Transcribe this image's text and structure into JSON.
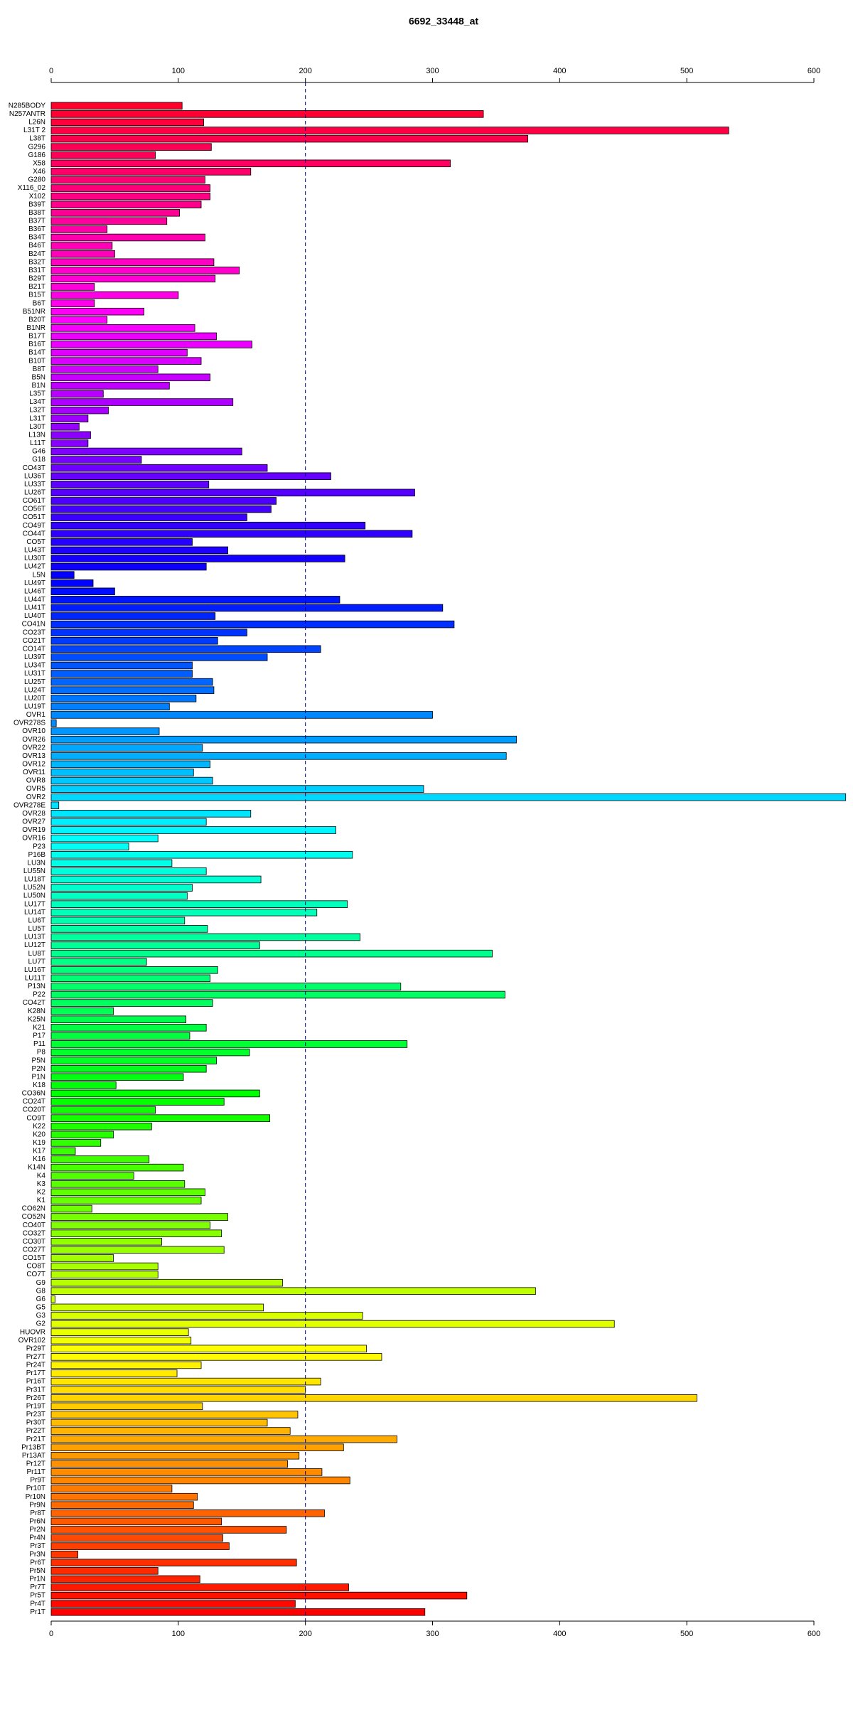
{
  "chart_data": {
    "type": "hbar",
    "title": "6692_33448_at",
    "categories": [
      "N285BODY",
      "N257ANTR",
      "L26N",
      "L31T 2",
      "L38T",
      "G296",
      "G186",
      "X58",
      "X46",
      "G280",
      "X116_02",
      "X102",
      "B39T",
      "B38T",
      "B37T",
      "B36T",
      "B34T",
      "B46T",
      "B24T",
      "B32T",
      "B31T",
      "B29T",
      "B21T",
      "B15T",
      "B6T",
      "B51NR",
      "B20T",
      "B1NR",
      "B17T",
      "B16T",
      "B14T",
      "B10T",
      "B8T",
      "B5N",
      "B1N",
      "L35T",
      "L34T",
      "L32T",
      "L31T",
      "L30T",
      "L13N",
      "L11T",
      "G46",
      "G18",
      "CO43T",
      "LU36T",
      "LU33T",
      "LU26T",
      "CO61T",
      "CO56T",
      "CO51T",
      "CO49T",
      "CO44T",
      "CO5T",
      "LU43T",
      "LU30T",
      "LU42T",
      "L5N",
      "LU49T",
      "LU46T",
      "LU44T",
      "LU41T",
      "LU40T",
      "CO41N",
      "CO23T",
      "CO21T",
      "CO14T",
      "LU39T",
      "LU34T",
      "LU31T",
      "LU25T",
      "LU24T",
      "LU20T",
      "LU19T",
      "OVR1",
      "OVR278S",
      "OVR10",
      "OVR26",
      "OVR22",
      "OVR13",
      "OVR12",
      "OVR11",
      "OVR8",
      "OVR5",
      "OVR2",
      "OVR278E",
      "OVR28",
      "OVR27",
      "OVR19",
      "OVR16",
      "P23",
      "P16B",
      "LU3N",
      "LU55N",
      "LU18T",
      "LU52N",
      "LU50N",
      "LU17T",
      "LU14T",
      "LU6T",
      "LU5T",
      "LU13T",
      "LU12T",
      "LU8T",
      "LU7T",
      "LU16T",
      "LU11T",
      "P13N",
      "P22",
      "CO42T",
      "K28N",
      "K25N",
      "K21",
      "P17",
      "P11",
      "P8",
      "P5N",
      "P2N",
      "P1N",
      "K18",
      "CO36N",
      "CO24T",
      "CO20T",
      "CO9T",
      "K22",
      "K20",
      "K19",
      "K17",
      "K16",
      "K14N",
      "K4",
      "K3",
      "K2",
      "K1",
      "CO62N",
      "CO52N",
      "CO40T",
      "CO32T",
      "CO30T",
      "CO27T",
      "CO15T",
      "CO8T",
      "CO7T",
      "G9",
      "G8",
      "G6",
      "G5",
      "G3",
      "G2",
      "HUOVR",
      "OVR102",
      "Pr29T",
      "Pr27T",
      "Pr24T",
      "Pr17T",
      "Pr16T",
      "Pr31T",
      "Pr26T",
      "Pr19T",
      "Pr23T",
      "Pr30T",
      "Pr22T",
      "Pr21T",
      "Pr13BT",
      "Pr13AT",
      "Pr12T",
      "Pr11T",
      "Pr9T",
      "Pr10T",
      "Pr10N",
      "Pr9N",
      "Pr8T",
      "Pr6N",
      "Pr2N",
      "Pr4N",
      "Pr3T",
      "Pr3N",
      "Pr6T",
      "Pr5N",
      "Pr1N",
      "Pr7T",
      "Pr5T",
      "Pr4T",
      "Pr1T"
    ],
    "values": [
      103,
      340,
      120,
      533,
      375,
      126,
      82,
      314,
      157,
      121,
      125,
      125,
      118,
      101,
      91,
      44,
      121,
      48,
      50,
      128,
      148,
      129,
      34,
      100,
      34,
      73,
      44,
      113,
      130,
      158,
      107,
      118,
      84,
      125,
      93,
      41,
      143,
      45,
      29,
      22,
      31,
      29,
      150,
      71,
      170,
      220,
      124,
      286,
      177,
      173,
      154,
      247,
      284,
      111,
      139,
      231,
      122,
      18,
      33,
      50,
      227,
      308,
      129,
      317,
      154,
      131,
      212,
      170,
      111,
      111,
      127,
      128,
      114,
      93,
      300,
      4,
      85,
      366,
      119,
      358,
      125,
      112,
      127,
      293,
      625,
      6,
      157,
      122,
      224,
      84,
      61,
      237,
      95,
      122,
      165,
      111,
      107,
      233,
      209,
      105,
      123,
      243,
      164,
      347,
      75,
      131,
      125,
      275,
      357,
      127,
      49,
      106,
      122,
      109,
      280,
      156,
      130,
      122,
      104,
      51,
      164,
      136,
      82,
      172,
      79,
      49,
      39,
      19,
      77,
      104,
      65,
      105,
      121,
      118,
      32,
      139,
      125,
      134,
      87,
      136,
      49,
      84,
      84,
      182,
      381,
      3,
      167,
      245,
      443,
      108,
      110,
      248,
      260,
      118,
      99,
      212,
      200,
      508,
      119,
      194,
      170,
      188,
      272,
      230,
      195,
      186,
      213,
      235,
      95,
      115,
      112,
      215,
      134,
      185,
      135,
      140,
      21,
      193,
      84,
      117,
      234,
      327,
      192,
      294
    ],
    "colors": [
      "hsl(350,100%,50%)",
      "hsl(348,100%,50%)",
      "hsl(346,100%,50%)",
      "hsl(344,100%,50%)",
      "hsl(342,100%,50%)",
      "hsl(340,100%,50%)",
      "hsl(339,100%,50%)",
      "hsl(337,100%,50%)",
      "hsl(335,100%,50%)",
      "hsl(333,100%,50%)",
      "hsl(331,100%,50%)",
      "hsl(329,100%,50%)",
      "hsl(327,100%,50%)",
      "hsl(325,100%,50%)",
      "hsl(323,100%,50%)",
      "hsl(321,100%,50%)",
      "hsl(319,100%,50%)",
      "hsl(317,100%,50%)",
      "hsl(316,100%,50%)",
      "hsl(314,100%,50%)",
      "hsl(312,100%,50%)",
      "hsl(310,100%,50%)",
      "hsl(308,100%,50%)",
      "hsl(306,100%,50%)",
      "hsl(304,100%,50%)",
      "hsl(302,100%,50%)",
      "hsl(300,100%,50%)",
      "hsl(298,100%,50%)",
      "hsl(296,100%,50%)",
      "hsl(295,100%,50%)",
      "hsl(293,100%,50%)",
      "hsl(291,100%,50%)",
      "hsl(289,100%,50%)",
      "hsl(287,100%,50%)",
      "hsl(285,100%,50%)",
      "hsl(283,100%,50%)",
      "hsl(281,100%,50%)",
      "hsl(279,100%,50%)",
      "hsl(277,100%,50%)",
      "hsl(275,100%,50%)",
      "hsl(273,100%,50%)",
      "hsl(272,100%,50%)",
      "hsl(270,100%,50%)",
      "hsl(268,100%,50%)",
      "hsl(266,100%,50%)",
      "hsl(264,100%,50%)",
      "hsl(262,100%,50%)",
      "hsl(260,100%,50%)",
      "hsl(258,100%,50%)",
      "hsl(256,100%,50%)",
      "hsl(254,100%,50%)",
      "hsl(252,100%,50%)",
      "hsl(251,100%,50%)",
      "hsl(249,100%,50%)",
      "hsl(247,100%,50%)",
      "hsl(245,100%,50%)",
      "hsl(243,100%,50%)",
      "hsl(241,100%,50%)",
      "hsl(239,100%,50%)",
      "hsl(237,100%,50%)",
      "hsl(235,100%,50%)",
      "hsl(233,100%,50%)",
      "hsl(231,100%,50%)",
      "hsl(229,100%,50%)",
      "hsl(228,100%,50%)",
      "hsl(226,100%,50%)",
      "hsl(224,100%,50%)",
      "hsl(222,100%,50%)",
      "hsl(220,100%,50%)",
      "hsl(218,100%,50%)",
      "hsl(216,100%,50%)",
      "hsl(214,100%,50%)",
      "hsl(212,100%,50%)",
      "hsl(210,100%,50%)",
      "hsl(208,100%,50%)",
      "hsl(207,100%,50%)",
      "hsl(205,100%,50%)",
      "hsl(203,100%,50%)",
      "hsl(201,100%,50%)",
      "hsl(199,100%,50%)",
      "hsl(197,100%,50%)",
      "hsl(195,100%,50%)",
      "hsl(193,100%,50%)",
      "hsl(191,100%,50%)",
      "hsl(189,100%,50%)",
      "hsl(187,100%,50%)",
      "hsl(186,100%,50%)",
      "hsl(184,100%,50%)",
      "hsl(182,100%,50%)",
      "hsl(180,100%,50%)",
      "hsl(178,100%,50%)",
      "hsl(176,100%,50%)",
      "hsl(174,100%,50%)",
      "hsl(172,100%,50%)",
      "hsl(170,100%,50%)",
      "hsl(168,100%,50%)",
      "hsl(166,100%,50%)",
      "hsl(164,100%,50%)",
      "hsl(163,100%,50%)",
      "hsl(161,100%,50%)",
      "hsl(159,100%,50%)",
      "hsl(157,100%,50%)",
      "hsl(155,100%,50%)",
      "hsl(153,100%,50%)",
      "hsl(151,100%,50%)",
      "hsl(149,100%,50%)",
      "hsl(147,100%,50%)",
      "hsl(145,100%,50%)",
      "hsl(143,100%,50%)",
      "hsl(142,100%,50%)",
      "hsl(140,100%,50%)",
      "hsl(138,100%,50%)",
      "hsl(136,100%,50%)",
      "hsl(134,100%,50%)",
      "hsl(132,100%,50%)",
      "hsl(130,100%,50%)",
      "hsl(128,100%,50%)",
      "hsl(126,100%,50%)",
      "hsl(124,100%,50%)",
      "hsl(122,100%,50%)",
      "hsl(120,100%,50%)",
      "hsl(119,100%,50%)",
      "hsl(117,100%,50%)",
      "hsl(115,100%,50%)",
      "hsl(113,100%,50%)",
      "hsl(111,100%,50%)",
      "hsl(109,100%,50%)",
      "hsl(107,100%,50%)",
      "hsl(105,100%,50%)",
      "hsl(103,100%,50%)",
      "hsl(101,100%,50%)",
      "hsl(99,100%,50%)",
      "hsl(98,100%,50%)",
      "hsl(96,100%,50%)",
      "hsl(94,100%,50%)",
      "hsl(92,100%,50%)",
      "hsl(90,100%,50%)",
      "hsl(88,100%,50%)",
      "hsl(86,100%,50%)",
      "hsl(84,100%,50%)",
      "hsl(82,100%,50%)",
      "hsl(80,100%,50%)",
      "hsl(78,100%,50%)",
      "hsl(77,100%,50%)",
      "hsl(75,100%,50%)",
      "hsl(73,100%,50%)",
      "hsl(71,100%,50%)",
      "hsl(69,100%,50%)",
      "hsl(67,100%,50%)",
      "hsl(65,100%,50%)",
      "hsl(63,100%,50%)",
      "hsl(61,100%,50%)",
      "hsl(59,100%,50%)",
      "hsl(57,100%,50%)",
      "hsl(55,100%,50%)",
      "hsl(54,100%,50%)",
      "hsl(52,100%,50%)",
      "hsl(50,100%,50%)",
      "hsl(48,100%,50%)",
      "hsl(46,100%,50%)",
      "hsl(44,100%,50%)",
      "hsl(42,100%,50%)",
      "hsl(40,100%,50%)",
      "hsl(38,100%,50%)",
      "hsl(36,100%,50%)",
      "hsl(34,100%,50%)",
      "hsl(33,100%,50%)",
      "hsl(31,100%,50%)",
      "hsl(29,100%,50%)",
      "hsl(27,100%,50%)",
      "hsl(25,100%,50%)",
      "hsl(23,100%,50%)",
      "hsl(21,100%,50%)",
      "hsl(19,100%,50%)",
      "hsl(17,100%,50%)",
      "hsl(15,100%,50%)",
      "hsl(13,100%,50%)",
      "hsl(11,100%,50%)",
      "hsl(10,100%,50%)",
      "hsl(8,100%,50%)",
      "hsl(6,100%,50%)",
      "hsl(4,100%,50%)",
      "hsl(2,100%,50%)",
      "hsl(0,100%,50%)"
    ],
    "xlim": [
      0,
      600
    ],
    "xticks": [
      0,
      100,
      200,
      300,
      400,
      500,
      600
    ],
    "reference_line": 200,
    "reference_color": "#000080"
  }
}
